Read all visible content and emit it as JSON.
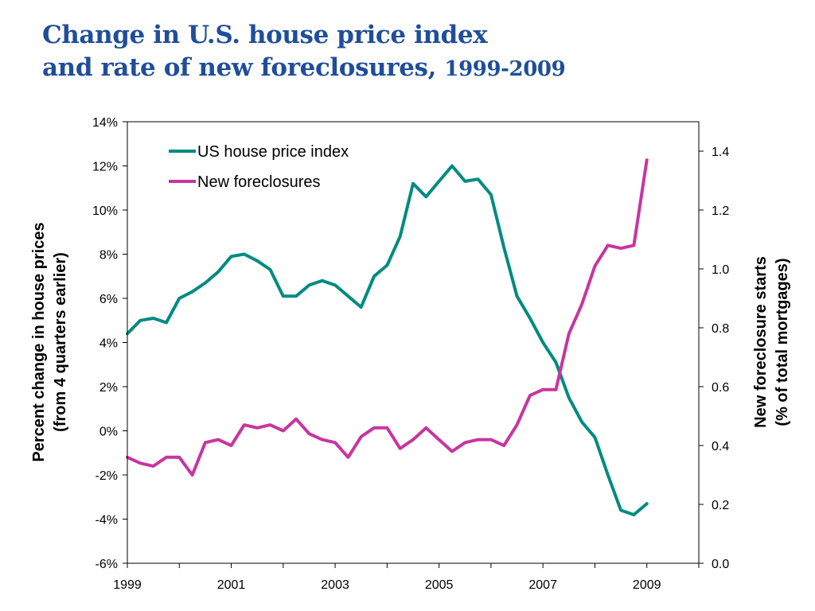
{
  "title": {
    "line1": "Change in U.S. house price index",
    "line2_main": "and rate of new foreclosures, ",
    "line2_years": "1999-2009"
  },
  "chart_data": {
    "type": "line",
    "title": "Change in U.S. house price index and rate of new foreclosures, 1999-2009",
    "x_ticks": [
      "1999",
      "2001",
      "2003",
      "2005",
      "2007",
      "2009"
    ],
    "xlim": [
      1999,
      2010
    ],
    "left_axis": {
      "label_line1": "Percent change in house prices",
      "label_line2": "(from 4 quarters earlier)",
      "ylim": [
        -6,
        14
      ],
      "ticks": [
        "-6%",
        "-4%",
        "-2%",
        "0%",
        "2%",
        "4%",
        "6%",
        "8%",
        "10%",
        "12%",
        "14%"
      ]
    },
    "right_axis": {
      "label_line1": "New foreclosure starts",
      "label_line2": "(% of total mortgages)",
      "ylim": [
        0,
        1.5
      ],
      "ticks": [
        "0.0",
        "0.2",
        "0.4",
        "0.6",
        "0.8",
        "1.0",
        "1.2",
        "1.4"
      ]
    },
    "legend_position": "top-left",
    "grid": false,
    "series": [
      {
        "name": "US house price index",
        "axis": "left",
        "color": "#008B80",
        "x": [
          1999.0,
          1999.25,
          1999.5,
          1999.75,
          2000.0,
          2000.25,
          2000.5,
          2000.75,
          2001.0,
          2001.25,
          2001.5,
          2001.75,
          2002.0,
          2002.25,
          2002.5,
          2002.75,
          2003.0,
          2003.25,
          2003.5,
          2003.75,
          2004.0,
          2004.25,
          2004.5,
          2004.75,
          2005.0,
          2005.25,
          2005.5,
          2005.75,
          2006.0,
          2006.25,
          2006.5,
          2006.75,
          2007.0,
          2007.25,
          2007.5,
          2007.75,
          2008.0,
          2008.25,
          2008.5,
          2008.75,
          2009.0
        ],
        "values": [
          4.4,
          5.0,
          5.1,
          4.9,
          6.0,
          6.3,
          6.7,
          7.2,
          7.9,
          8.0,
          7.7,
          7.3,
          6.1,
          6.1,
          6.6,
          6.8,
          6.6,
          6.1,
          5.6,
          7.0,
          7.5,
          8.8,
          11.2,
          10.6,
          11.3,
          12.0,
          11.3,
          11.4,
          10.7,
          8.3,
          6.1,
          5.1,
          4.0,
          3.1,
          1.5,
          0.4,
          -0.3,
          -2.0,
          -3.6,
          -3.8,
          -3.3
        ]
      },
      {
        "name": "New foreclosures",
        "axis": "right",
        "color": "#C8359F",
        "x": [
          1999.0,
          1999.25,
          1999.5,
          1999.75,
          2000.0,
          2000.25,
          2000.5,
          2000.75,
          2001.0,
          2001.25,
          2001.5,
          2001.75,
          2002.0,
          2002.25,
          2002.5,
          2002.75,
          2003.0,
          2003.25,
          2003.5,
          2003.75,
          2004.0,
          2004.25,
          2004.5,
          2004.75,
          2005.0,
          2005.25,
          2005.5,
          2005.75,
          2006.0,
          2006.25,
          2006.5,
          2006.75,
          2007.0,
          2007.25,
          2007.5,
          2007.75,
          2008.0,
          2008.25,
          2008.5,
          2008.75,
          2009.0
        ],
        "values": [
          0.36,
          0.34,
          0.33,
          0.36,
          0.36,
          0.3,
          0.41,
          0.42,
          0.4,
          0.47,
          0.46,
          0.47,
          0.45,
          0.49,
          0.44,
          0.42,
          0.41,
          0.36,
          0.43,
          0.46,
          0.46,
          0.39,
          0.42,
          0.46,
          0.42,
          0.38,
          0.41,
          0.42,
          0.42,
          0.4,
          0.47,
          0.57,
          0.59,
          0.59,
          0.78,
          0.88,
          1.01,
          1.08,
          1.07,
          1.08,
          1.37
        ]
      }
    ]
  }
}
